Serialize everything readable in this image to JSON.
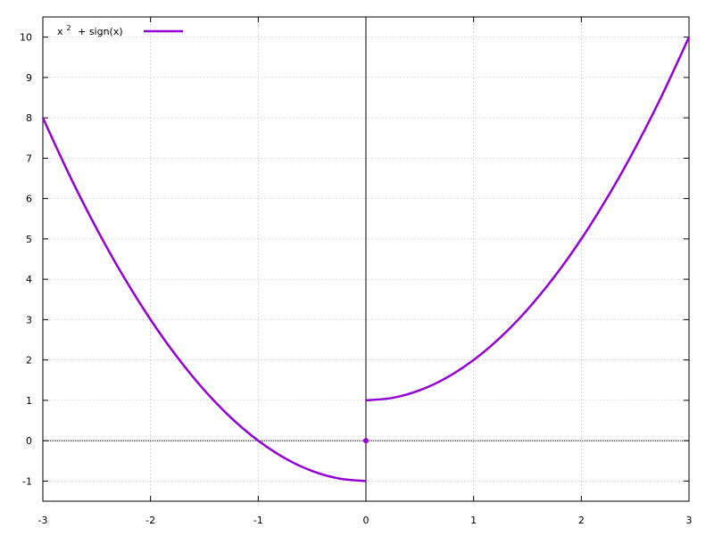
{
  "chart_data": {
    "type": "line",
    "title": "",
    "xlabel": "",
    "ylabel": "",
    "xlim": [
      -3,
      3
    ],
    "ylim": [
      -1.5,
      10.5
    ],
    "x_ticks": [
      -3,
      -2,
      -1,
      0,
      1,
      2,
      3
    ],
    "y_ticks": [
      -1,
      0,
      1,
      2,
      3,
      4,
      5,
      6,
      7,
      8,
      9,
      10
    ],
    "x_tick_labels": [
      "-3",
      "-2",
      "-1",
      "0",
      "1",
      "2",
      "3"
    ],
    "y_tick_labels": [
      "-1",
      "0",
      "1",
      "2",
      "3",
      "4",
      "5",
      "6",
      "7",
      "8",
      "9",
      "10"
    ],
    "grid": true,
    "legend_placement": "top-left",
    "series": [
      {
        "name_base": "x",
        "name_sup": "2",
        "name_rest": " + sign(x)",
        "color": "#9400d3",
        "segments": [
          {
            "x": [
              -3,
              -2.75,
              -2.5,
              -2.25,
              -2,
              -1.75,
              -1.5,
              -1.25,
              -1,
              -0.75,
              -0.5,
              -0.25,
              0
            ],
            "y": [
              8,
              6.5625,
              5.25,
              4.0625,
              3,
              2.0625,
              1.25,
              0.5625,
              0,
              -0.4375,
              -0.75,
              -0.9375,
              -1
            ]
          },
          {
            "x": [
              0,
              0.25,
              0.5,
              0.75,
              1,
              1.25,
              1.5,
              1.75,
              2,
              2.25,
              2.5,
              2.75,
              3
            ],
            "y": [
              1,
              1.0625,
              1.25,
              1.5625,
              2,
              2.5625,
              3.25,
              4.0625,
              5,
              6.0625,
              7.25,
              8.5625,
              10
            ]
          }
        ],
        "points": [
          {
            "x": 0,
            "y": 0
          }
        ]
      }
    ]
  }
}
